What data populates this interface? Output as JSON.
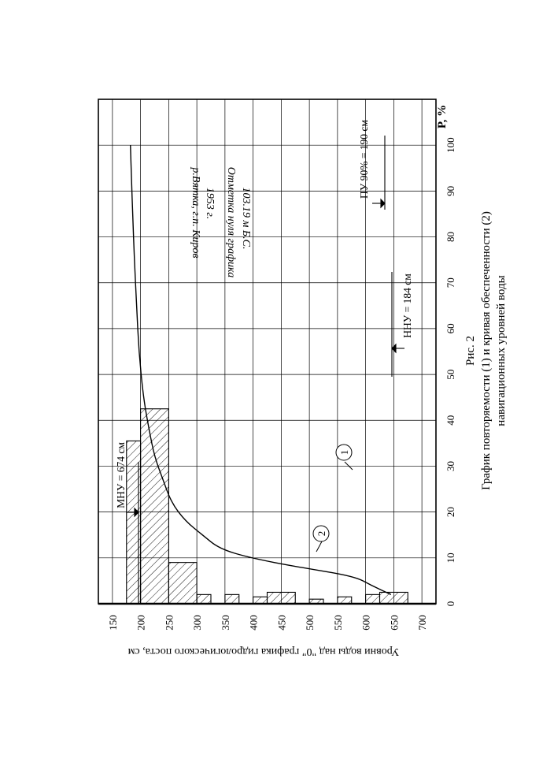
{
  "figure": {
    "number_label": "Рис. 2",
    "caption_line1": "График повторяемости (1) и кривая обеспеченности (2)",
    "caption_line2": "навигационных уровней воды"
  },
  "annotations": {
    "river_line1": "р.Вятка,   г.п. Киров",
    "river_line2": "1953 г.",
    "zero_line1": "Отметка нуля графика",
    "zero_line2": "103.19 м Б.С.",
    "mnu": "МНУ = 674 см",
    "nnu": "ННУ = 184 см",
    "pu": "ПУ 90% = 190 см",
    "marker_1": "1",
    "marker_2": "2"
  },
  "chart_data": {
    "type": "bar",
    "orientation": "rotated -90°",
    "ylabel": "Уровни воды над \"0\" графика гидрологического поста, см",
    "xlabel": "P, %",
    "ylim": [
      125,
      725
    ],
    "xlim": [
      0,
      110
    ],
    "y_ticks": [
      "150",
      "200",
      "250",
      "300",
      "350",
      "400",
      "450",
      "500",
      "550",
      "600",
      "650",
      "700"
    ],
    "x_ticks": [
      "0",
      "10",
      "20",
      "30",
      "40",
      "50",
      "60",
      "70",
      "80",
      "90",
      "100"
    ],
    "grid": true,
    "histogram_bins": [
      {
        "from": 175,
        "to": 200,
        "value": 35.5
      },
      {
        "from": 200,
        "to": 250,
        "value": 42.5
      },
      {
        "from": 250,
        "to": 300,
        "value": 9.0
      },
      {
        "from": 300,
        "to": 325,
        "value": 2.0
      },
      {
        "from": 350,
        "to": 375,
        "value": 2.0
      },
      {
        "from": 400,
        "to": 425,
        "value": 1.5
      },
      {
        "from": 425,
        "to": 475,
        "value": 2.5
      },
      {
        "from": 500,
        "to": 525,
        "value": 1.0
      },
      {
        "from": 550,
        "to": 575,
        "value": 1.5
      },
      {
        "from": 600,
        "to": 625,
        "value": 2.0
      },
      {
        "from": 625,
        "to": 675,
        "value": 2.5
      }
    ],
    "curve": [
      {
        "p": 2,
        "level": 645
      },
      {
        "p": 4,
        "level": 610
      },
      {
        "p": 6,
        "level": 580
      },
      {
        "p": 8,
        "level": 480
      },
      {
        "p": 10,
        "level": 395
      },
      {
        "p": 12,
        "level": 340
      },
      {
        "p": 15,
        "level": 310
      },
      {
        "p": 18,
        "level": 280
      },
      {
        "p": 22,
        "level": 255
      },
      {
        "p": 27,
        "level": 240
      },
      {
        "p": 32,
        "level": 225
      },
      {
        "p": 38,
        "level": 215
      },
      {
        "p": 45,
        "level": 205
      },
      {
        "p": 55,
        "level": 197
      },
      {
        "p": 65,
        "level": 193
      },
      {
        "p": 75,
        "level": 189
      },
      {
        "p": 85,
        "level": 186
      },
      {
        "p": 92,
        "level": 184
      },
      {
        "p": 100,
        "level": 182
      }
    ]
  }
}
